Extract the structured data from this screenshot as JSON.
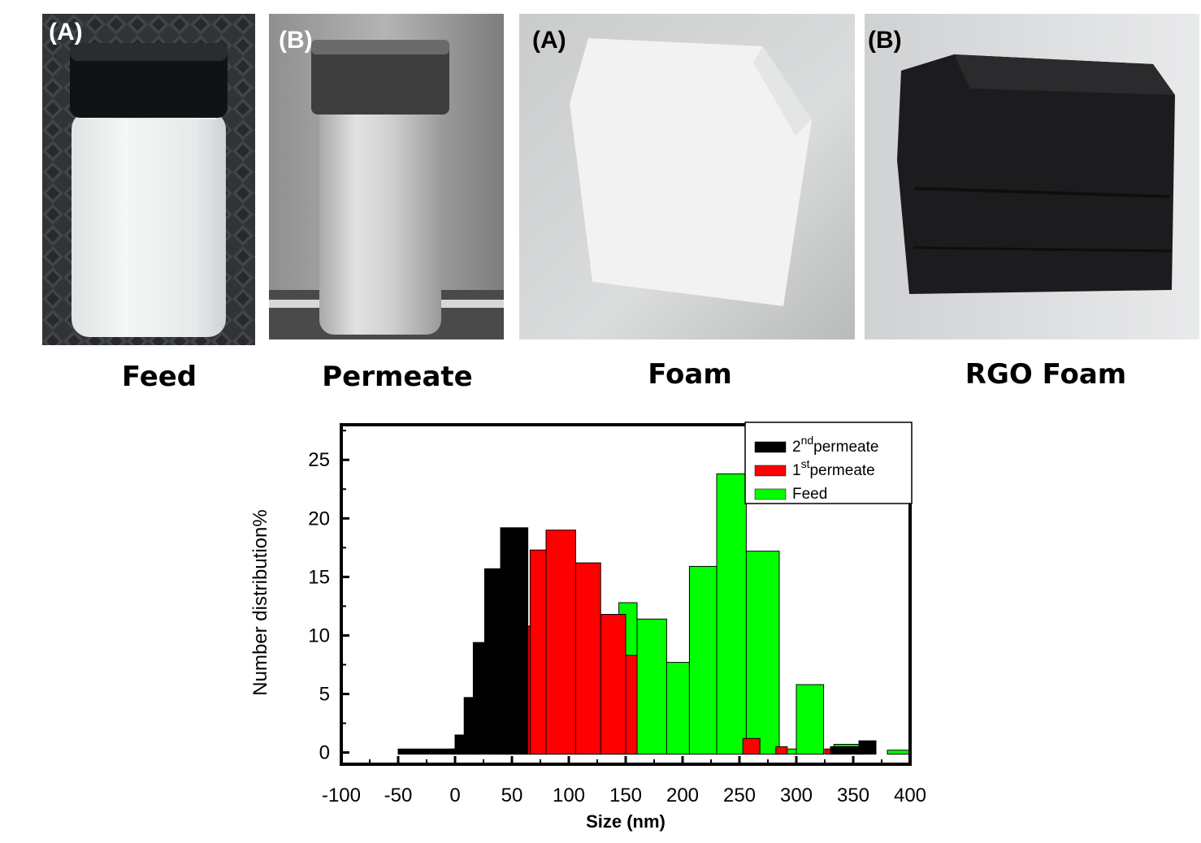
{
  "panels": [
    {
      "tag": "(A)",
      "caption": "Feed"
    },
    {
      "tag": "(B)",
      "caption": "Permeate"
    },
    {
      "tag": "(A)",
      "caption": "Foam"
    },
    {
      "tag": "(B)",
      "caption": "RGO Foam"
    }
  ],
  "chart_data": {
    "type": "bar",
    "xlabel": "Size (nm)",
    "ylabel": "Number distribution%",
    "xlim": [
      -100,
      400
    ],
    "ylim": [
      -1,
      28
    ],
    "xticks": [
      "-100",
      "-50",
      "0",
      "50",
      "100",
      "150",
      "200",
      "250",
      "300",
      "350",
      "400"
    ],
    "yticks": [
      "0",
      "5",
      "10",
      "15",
      "20",
      "25"
    ],
    "legend_position": "top-right",
    "series": [
      {
        "name_base": "2",
        "name_sup": "nd",
        "name_rest": "permeate",
        "color": "#000000",
        "bars": [
          [
            -50,
            0,
            0.3
          ],
          [
            0,
            8,
            1.5
          ],
          [
            8,
            16,
            4.7
          ],
          [
            16,
            26,
            9.4
          ],
          [
            26,
            40,
            15.7
          ],
          [
            40,
            64,
            19.2
          ],
          [
            330,
            355,
            0.5
          ],
          [
            355,
            370,
            1.0
          ]
        ]
      },
      {
        "name_base": "1",
        "name_sup": "st",
        "name_rest": "permeate",
        "color": "#ff0000",
        "bars": [
          [
            -3,
            46,
            0.3
          ],
          [
            46,
            56,
            2.2
          ],
          [
            56,
            66,
            10.8
          ],
          [
            66,
            80,
            17.3
          ],
          [
            80,
            106,
            19.0
          ],
          [
            106,
            128,
            16.2
          ],
          [
            128,
            150,
            11.8
          ],
          [
            150,
            160,
            8.3
          ],
          [
            253,
            268,
            1.2
          ],
          [
            282,
            292,
            0.5
          ],
          [
            325,
            333,
            0.3
          ]
        ]
      },
      {
        "name": "Feed",
        "color": "#00ff00",
        "bars": [
          [
            44,
            128,
            0.3
          ],
          [
            128,
            144,
            4.9
          ],
          [
            144,
            160,
            12.8
          ],
          [
            160,
            186,
            11.4
          ],
          [
            186,
            206,
            7.7
          ],
          [
            206,
            230,
            15.9
          ],
          [
            230,
            256,
            23.8
          ],
          [
            256,
            285,
            17.2
          ],
          [
            285,
            300,
            0.3
          ],
          [
            300,
            324,
            5.8
          ],
          [
            333,
            360,
            0.7
          ],
          [
            380,
            400,
            0.2
          ]
        ]
      }
    ]
  }
}
